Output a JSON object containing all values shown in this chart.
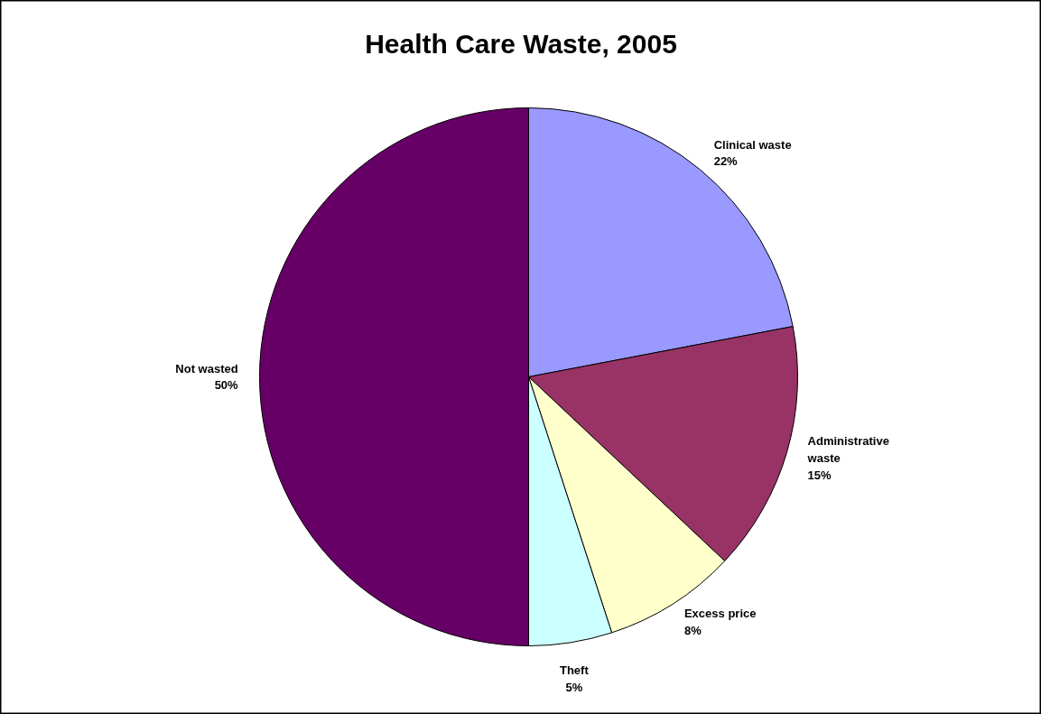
{
  "chart_data": {
    "type": "pie",
    "title": "Health Care Waste, 2005",
    "categories": [
      "Clinical waste",
      "Administrative waste",
      "Excess price",
      "Theft",
      "Not wasted"
    ],
    "values": [
      22,
      15,
      8,
      5,
      50
    ],
    "value_labels": [
      "22%",
      "15%",
      "8%",
      "5%",
      "50%"
    ],
    "colors": [
      "#9999ff",
      "#993366",
      "#ffffcc",
      "#ccffff",
      "#660066"
    ],
    "legend": false
  }
}
